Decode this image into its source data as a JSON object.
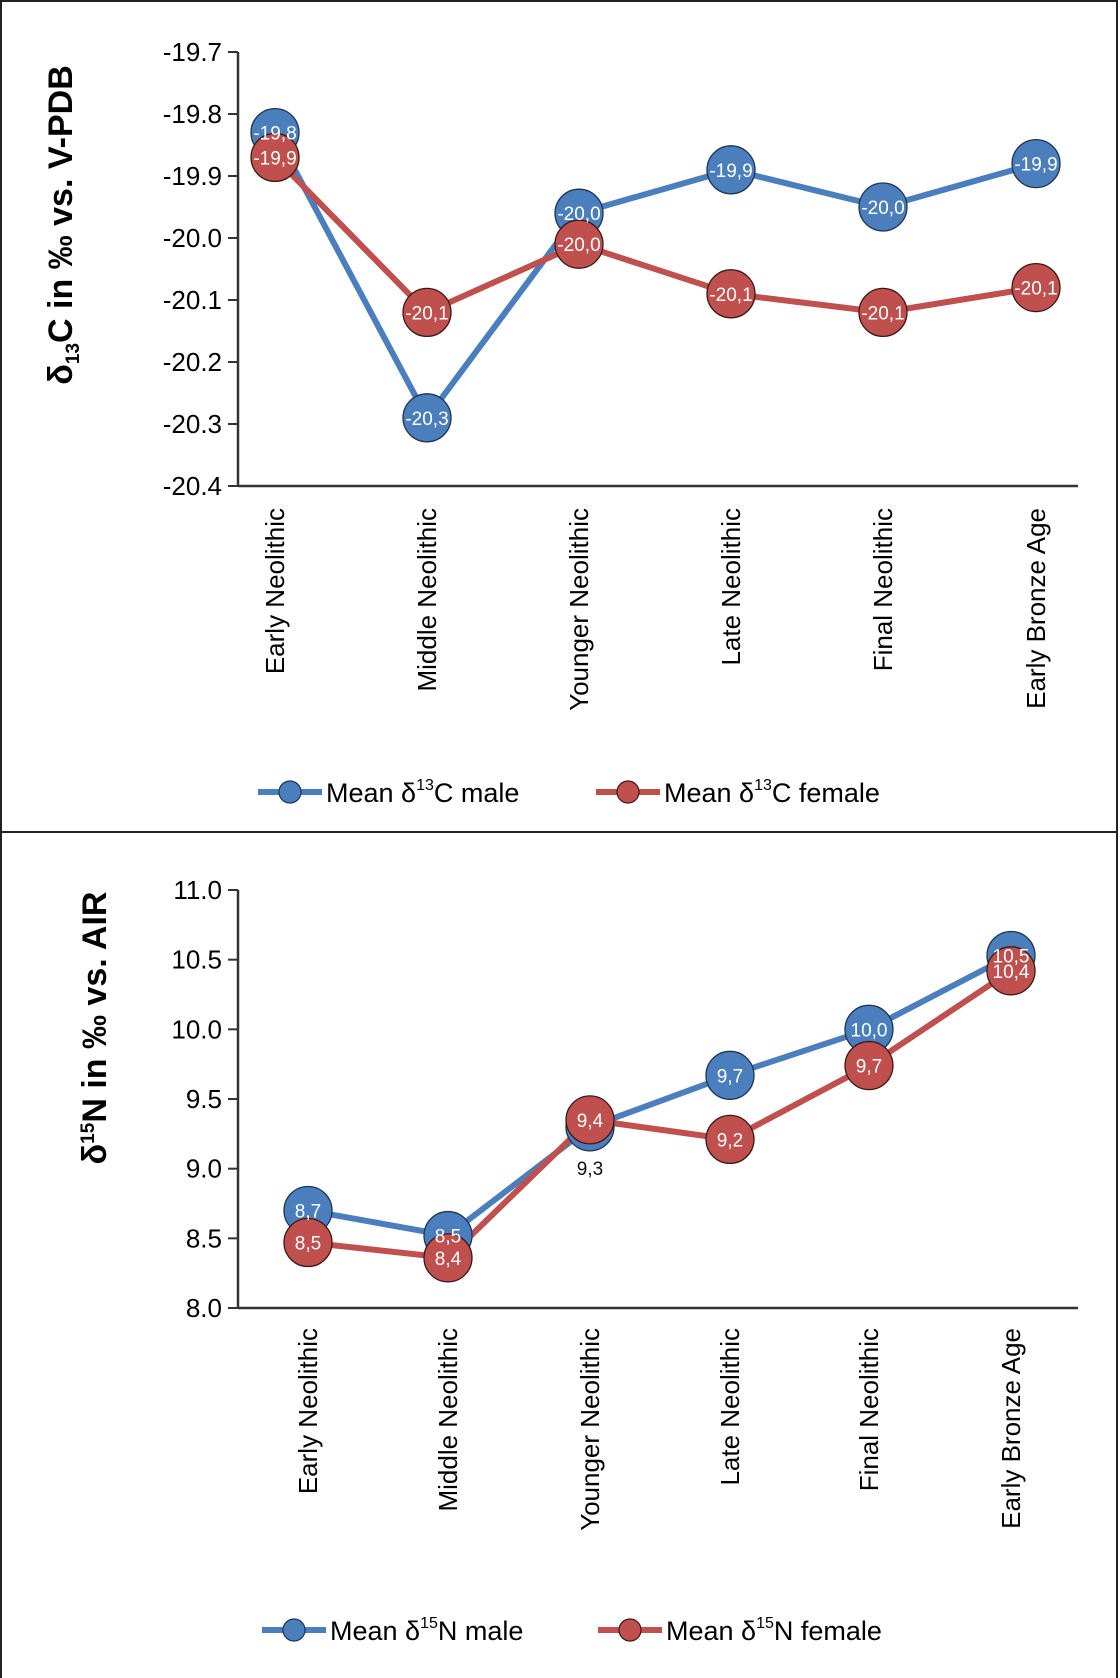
{
  "chart_data": [
    {
      "type": "line",
      "ylabel_parts": [
        "δ",
        "13",
        "C in ‰ vs. V-PDB"
      ],
      "categories": [
        "Early Neolithic",
        "Middle Neolithic",
        "Younger Neolithic",
        "Late Neolithic",
        "Final Neolithic",
        "Early Bronze Age"
      ],
      "ylim": [
        -20.4,
        -19.7
      ],
      "yticks": [
        "-19.7",
        "-19.8",
        "-19.9",
        "-20.0",
        "-20.1",
        "-20.2",
        "-20.3",
        "-20.4"
      ],
      "series": [
        {
          "legend_parts": [
            "Mean δ",
            "13",
            "C male"
          ],
          "color": "#4a7ebd",
          "values": [
            -19.83,
            -20.29,
            -19.96,
            -19.89,
            -19.95,
            -19.88
          ],
          "labels": [
            "-19,8",
            "-20,3",
            "-20,0",
            "-19,9",
            "-20,0",
            "-19,9"
          ]
        },
        {
          "legend_parts": [
            "Mean δ",
            "13",
            "C female"
          ],
          "color": "#c0504d",
          "values": [
            -19.87,
            -20.12,
            -20.01,
            -20.09,
            -20.12,
            -20.08
          ],
          "labels": [
            "-19,9",
            "-20,1",
            "-20,0",
            "-20,1",
            "-20,1",
            "-20,1"
          ]
        }
      ],
      "grid": false,
      "legend_position": "bottom"
    },
    {
      "type": "line",
      "ylabel_parts": [
        "δ",
        "15",
        "N in ‰ vs. AIR"
      ],
      "categories": [
        "Early Neolithic",
        "Middle Neolithic",
        "Younger Neolithic",
        "Late Neolithic",
        "Final Neolithic",
        "Early Bronze Age"
      ],
      "ylim": [
        8.0,
        11.0
      ],
      "yticks": [
        "11.0",
        "10.5",
        "10.0",
        "9.5",
        "9.0",
        "8.5",
        "8.0"
      ],
      "series": [
        {
          "legend_parts": [
            "Mean δ",
            "15",
            "N male"
          ],
          "color": "#4a7ebd",
          "values": [
            8.7,
            8.52,
            9.3,
            9.67,
            10.0,
            10.53
          ],
          "labels": [
            "8,7",
            "8,5",
            "9,3",
            "9,7",
            "10,0",
            "10,5"
          ]
        },
        {
          "legend_parts": [
            "Mean δ",
            "15",
            "N female"
          ],
          "color": "#c0504d",
          "values": [
            8.47,
            8.36,
            9.35,
            9.21,
            9.74,
            10.42
          ],
          "labels": [
            "8,5",
            "8,4",
            "9,4",
            "9,2",
            "9,7",
            "10,4"
          ]
        }
      ],
      "grid": false,
      "legend_position": "bottom"
    }
  ]
}
